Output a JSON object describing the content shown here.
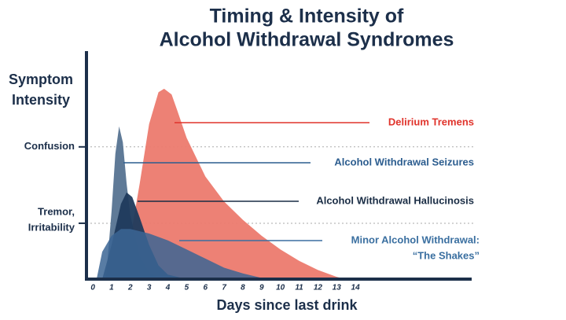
{
  "chart_data": {
    "type": "area",
    "title": [
      "Timing & Intensity of",
      "Alcohol Withdrawal Syndromes"
    ],
    "ylabel": [
      "Symptom",
      "Intensity"
    ],
    "xlabel": "Days since last drink",
    "xlim": [
      -0.34,
      20.2
    ],
    "xticks": [
      0,
      1,
      2,
      3,
      4,
      5,
      6,
      7,
      8,
      9,
      10,
      11,
      12,
      13,
      14
    ],
    "ylim": [
      0,
      100
    ],
    "yticks": [
      {
        "value": 24.5,
        "label": [
          "Tremor,",
          "Irritability"
        ]
      },
      {
        "value": 58,
        "label": [
          "Confusion"
        ]
      }
    ],
    "grid": true,
    "series": [
      {
        "label": [
          "Delirium Tremens"
        ],
        "color": "#ec7a6e",
        "label_color": "#e0332b",
        "x": [
          1,
          1.5,
          2,
          2.5,
          3,
          3.5,
          3.8,
          4.2,
          4.5,
          5,
          6,
          7,
          8,
          9,
          10,
          11,
          12,
          13,
          13.5
        ],
        "values": [
          0,
          5,
          18,
          42,
          68,
          82,
          83.5,
          81,
          74,
          62,
          45,
          34,
          26,
          19,
          13,
          8,
          4,
          1,
          0
        ]
      },
      {
        "label": [
          "Alcohol Withdrawal Seizures"
        ],
        "color": "#567391",
        "label_color": "#2c5d8f",
        "x": [
          0.7,
          1,
          1.2,
          1.4,
          1.6,
          1.8,
          2,
          2.5,
          3,
          3.5
        ],
        "values": [
          0,
          30,
          55,
          67,
          60,
          42,
          28,
          10,
          3,
          0
        ]
      },
      {
        "label": [
          "Alcohol Withdrawal Hallucinosis"
        ],
        "color": "#1f3a5c",
        "label_color": "#1a2d45",
        "x": [
          0.5,
          1,
          1.5,
          1.8,
          2.1,
          2.5,
          3,
          3.5,
          4,
          5
        ],
        "values": [
          0,
          15,
          33,
          38,
          36,
          27,
          15,
          6,
          2,
          0
        ]
      },
      {
        "label": [
          "Minor Alcohol Withdrawal:",
          "“The Shakes”"
        ],
        "color": "#3b6594",
        "label_color": "#3a6fa0",
        "x": [
          0.2,
          0.5,
          1,
          1.5,
          2,
          3,
          4,
          5,
          6,
          7,
          8,
          9,
          10
        ],
        "values": [
          0,
          12,
          19,
          22,
          22,
          20,
          17,
          13,
          9,
          5,
          2.5,
          0.5,
          0
        ]
      }
    ]
  }
}
